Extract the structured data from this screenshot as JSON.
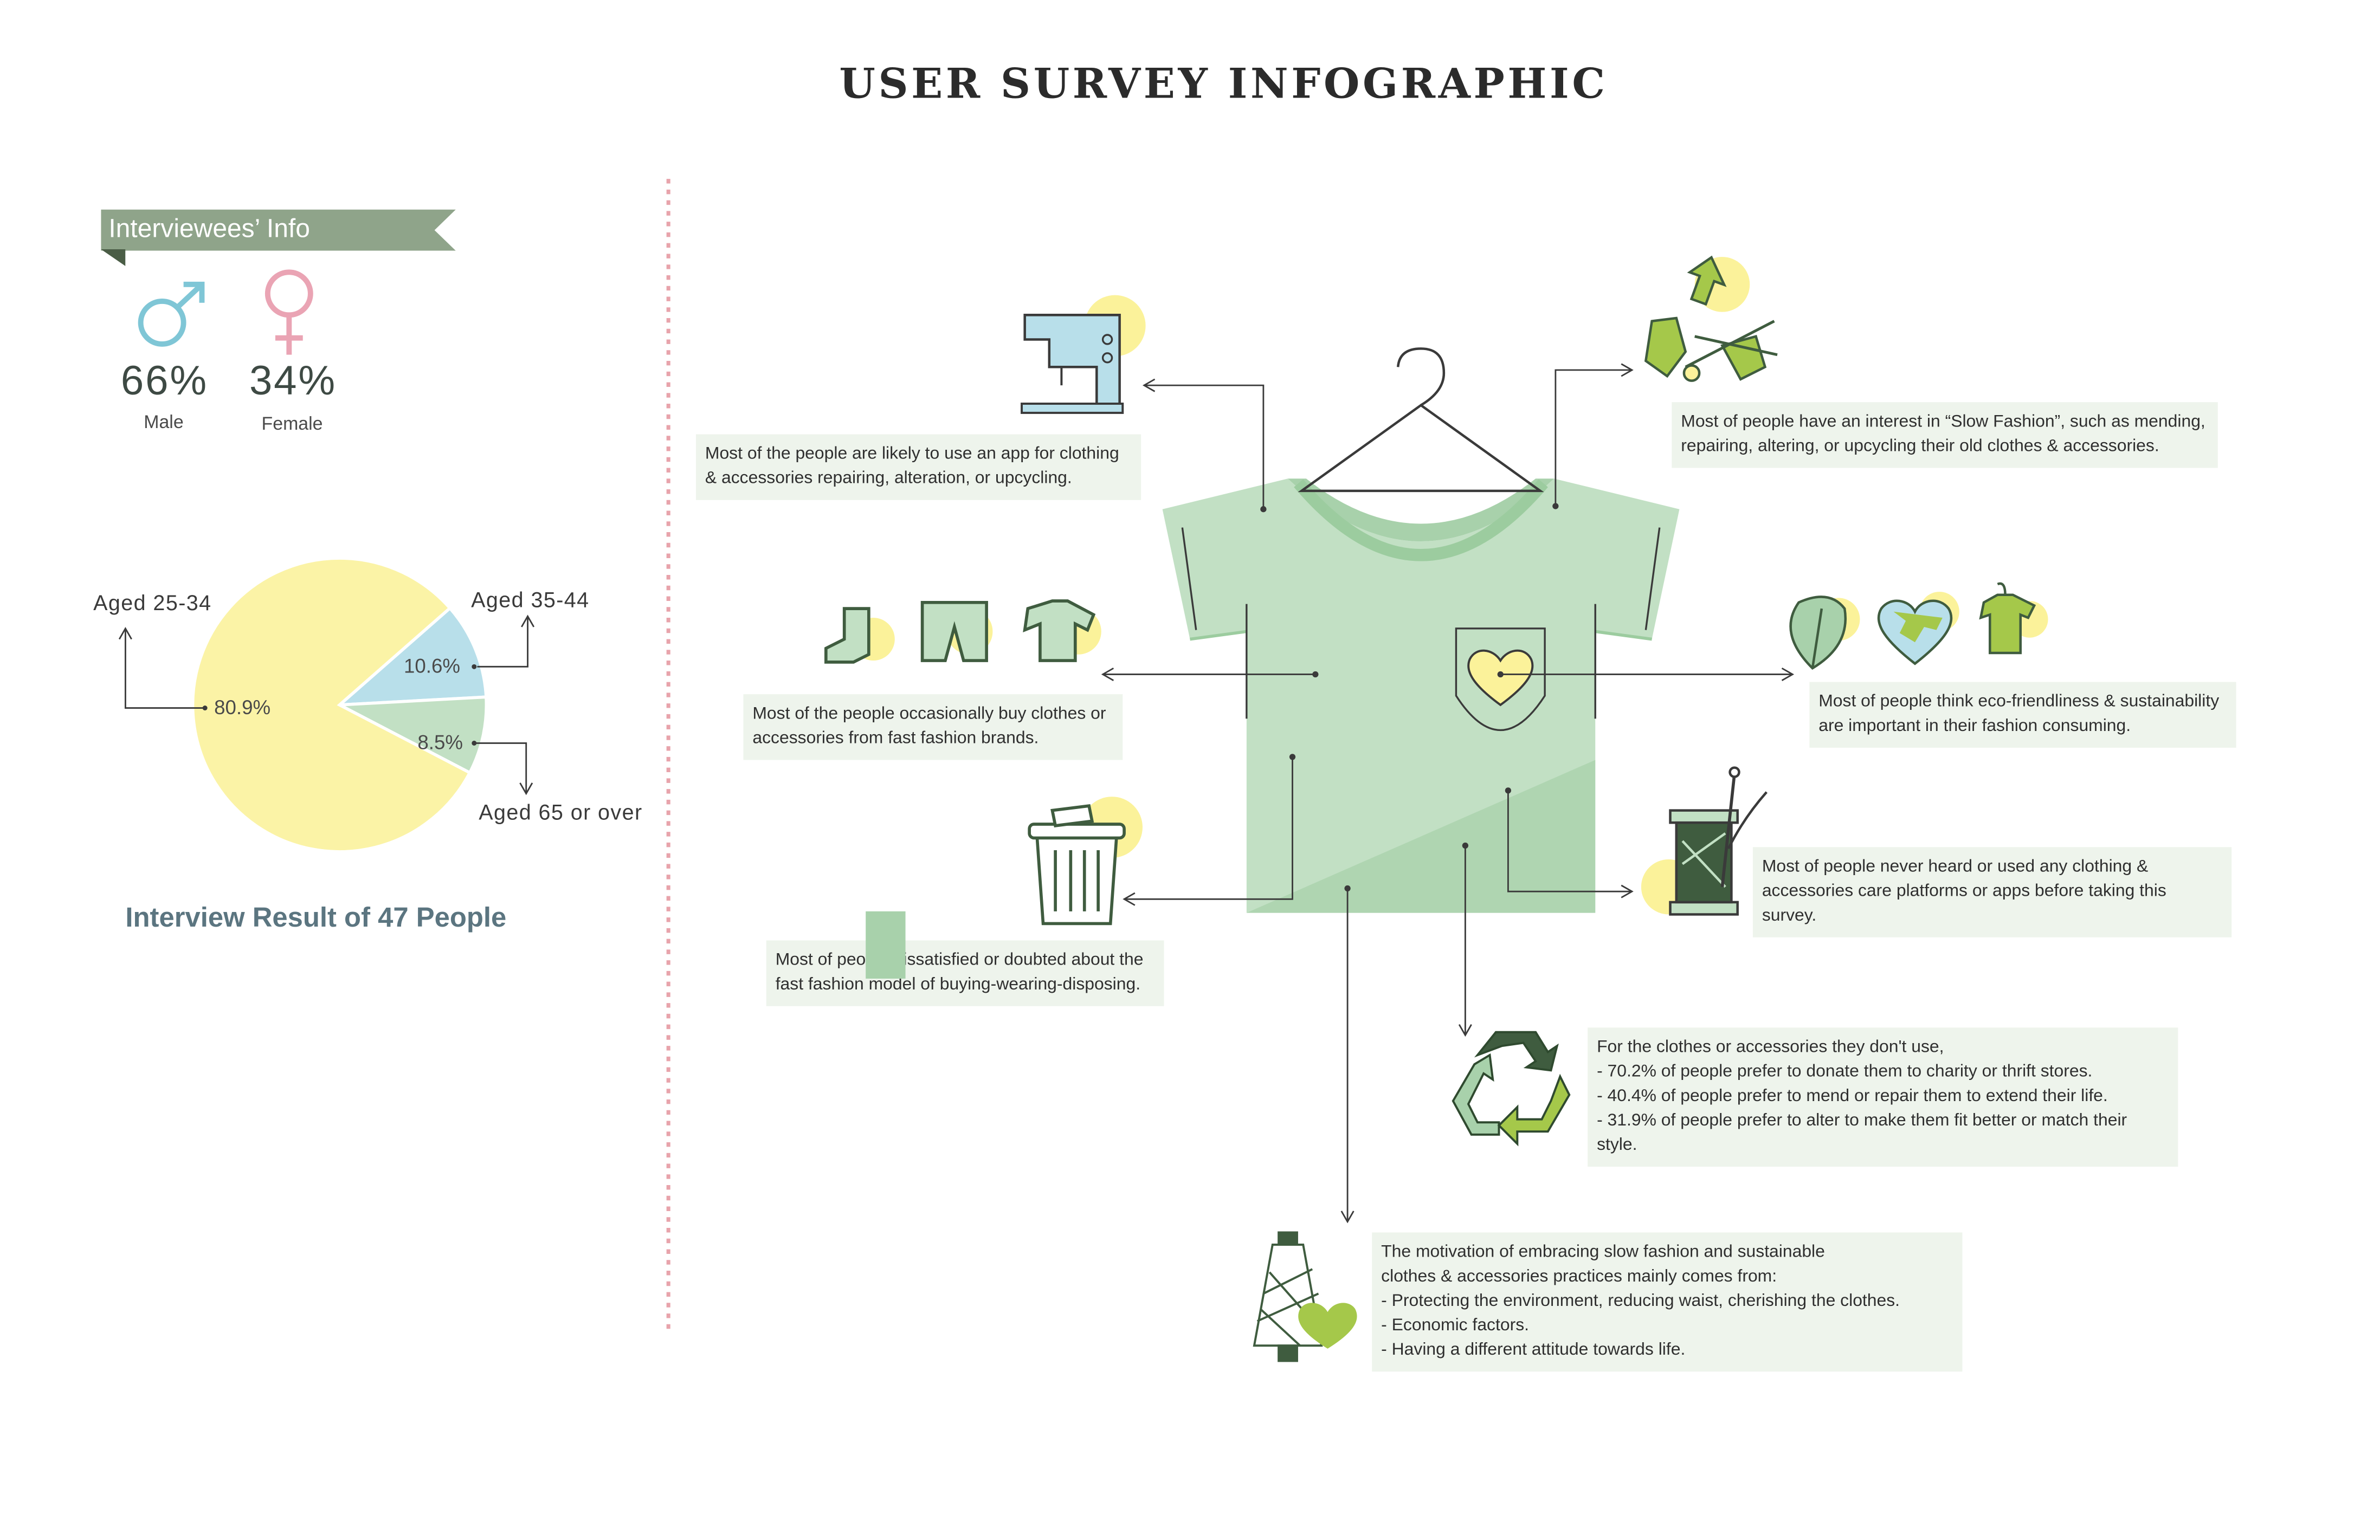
{
  "title": "USER SURVEY INFOGRAPHIC",
  "interviewees": {
    "ribbon_label": "Interviewees’ Info",
    "male": {
      "percent": "66%",
      "label": "Male"
    },
    "female": {
      "percent": "34%",
      "label": "Female"
    },
    "result_label": "Interview Result of 47 People"
  },
  "age_pie": {
    "type": "pie",
    "slices": [
      {
        "label": "Aged 25-34",
        "value": 80.9,
        "value_label": "80.9%",
        "color": "#fbf3a6"
      },
      {
        "label": "Aged 35-44",
        "value": 10.6,
        "value_label": "10.6%",
        "color": "#b8dfea"
      },
      {
        "label": "Aged 65 or over",
        "value": 8.5,
        "value_label": "8.5%",
        "color": "#c2e0c4"
      }
    ]
  },
  "findings": {
    "repair_app": "Most of the people are likely to use an app for clothing\n& accessories repairing, alteration, or upcycling.",
    "fast_fashion_buy": "Most of the people occasionally buy clothes or\naccessories from fast fashion brands.",
    "dissatisfied": "Most of people dissatisfied or doubted about the\nfast fashion model of buying-wearing-disposing.",
    "slow_fashion": "Most of people have an interest in “Slow Fashion”, such as mending,\nrepairing, altering, or upcycling their old clothes & accessories.",
    "eco_friendly": "Most of people think eco-friendliness & sustainability\nare important in their fashion consuming.",
    "care_platforms": "Most of people never heard or used any clothing &\naccessories care platforms or apps before taking this survey.",
    "unused_items": "For the clothes or accessories they don't use,\n- 70.2% of people prefer to donate them to charity or thrift stores.\n- 40.4% of people prefer to mend or repair them to extend their life.\n- 31.9% of people prefer to alter to make them fit better or match their style.",
    "motivation": "The motivation of embracing slow fashion and sustainable\nclothes & accessories practices mainly comes from:\n- Protecting the environment, reducing waist, cherishing the clothes.\n- Economic factors.\n- Having a different attitude towards life."
  },
  "colors": {
    "shirt": "#c2e0c4",
    "shirt_shadow": "#a8d1ab",
    "divider": "#e8a3ab",
    "male_symbol": "#7fc6d6",
    "female_symbol": "#eaa4b4",
    "accent_yellow": "#fbf29a",
    "dark_green": "#3f5c3f",
    "lime": "#a5c84a"
  },
  "icons": [
    "sewing-machine-icon",
    "clothes-icon",
    "trash-can-icon",
    "upcycle-arrows-scissors-icon",
    "eco-leaf-earth-shirt-icon",
    "thread-spool-needle-icon",
    "recycle-icon",
    "yarn-cone-heart-icon",
    "hanger-icon"
  ]
}
